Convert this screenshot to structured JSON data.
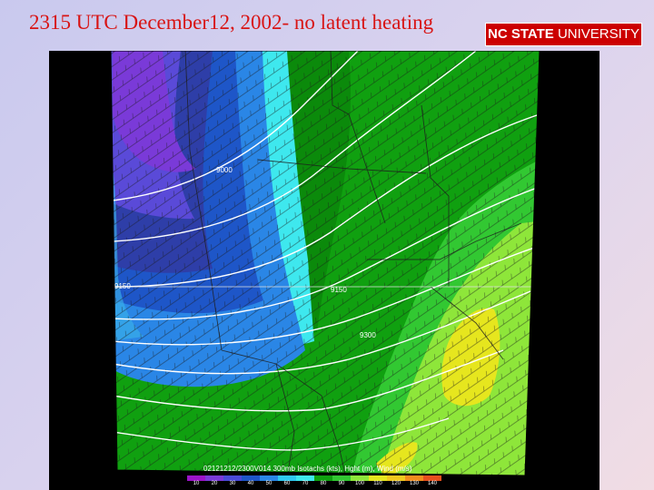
{
  "slide": {
    "title": "2315 UTC December12, 2002- no latent heating"
  },
  "logo": {
    "bold_text": "NC STATE",
    "regular_text": " UNIVERSITY",
    "background": "#cc0000"
  },
  "map": {
    "caption": "02121212/2300V014 300mb Isotachs (kts), Hght (m), Wind (m/s)",
    "contour_labels": [
      "9000",
      "9150",
      "9150",
      "9300"
    ],
    "colorbar": {
      "labels": [
        "10",
        "20",
        "30",
        "40",
        "50",
        "60",
        "70",
        "80",
        "90",
        "100",
        "110",
        "120",
        "130",
        "140"
      ],
      "colors": [
        "#9b14c8",
        "#7a3ad8",
        "#4a4ad8",
        "#1e56c8",
        "#2a86e6",
        "#2ec8f0",
        "#3ee8ee",
        "#10a010",
        "#32c832",
        "#8ee63a",
        "#e6e61e",
        "#f0c81e",
        "#f08c1e",
        "#e6501e"
      ]
    }
  }
}
